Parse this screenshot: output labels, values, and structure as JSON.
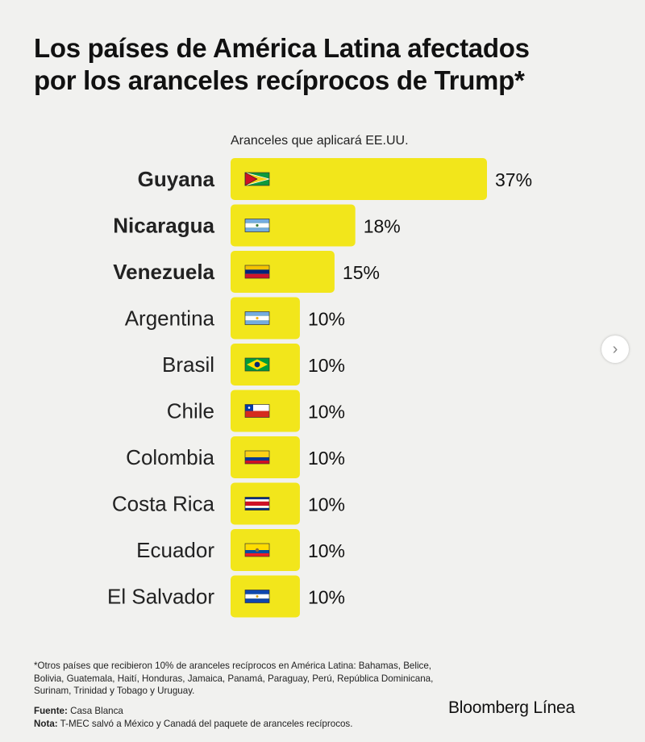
{
  "title_line1": "Los países de América Latina afectados",
  "title_line2": "por los aranceles recíprocos de Trump*",
  "footnote": {
    "text": "*Otros países que recibieron 10% de aranceles recíprocos en América Latina: Bahamas, Belice, Bolivia, Guatemala, Haití, Honduras, Jamaica, Panamá, Paraguay, Perú, República Dominicana, Surinam, Trinidad y Tobago y Uruguay.",
    "source_label": "Fuente:",
    "source_value": "Casa Blanca",
    "note_label": "Nota:",
    "note_value": "T-MEC salvó a México y Canadá del paquete de aranceles recíprocos."
  },
  "brand": "Bloomberg Línea",
  "colors": {
    "bar": "#f2e61b",
    "text": "#111111",
    "background": "#f1f1ef"
  },
  "chart_data": {
    "type": "bar",
    "orientation": "horizontal",
    "subtitle": "Aranceles que aplicará EE.UU.",
    "categories": [
      "Guyana",
      "Nicaragua",
      "Venezuela",
      "Argentina",
      "Brasil",
      "Chile",
      "Colombia",
      "Costa Rica",
      "Ecuador",
      "El Salvador"
    ],
    "values": [
      37,
      18,
      15,
      10,
      10,
      10,
      10,
      10,
      10,
      10
    ],
    "value_labels": [
      "37%",
      "18%",
      "15%",
      "10%",
      "10%",
      "10%",
      "10%",
      "10%",
      "10%",
      "10%"
    ],
    "bold_categories": [
      "Guyana",
      "Nicaragua",
      "Venezuela"
    ],
    "flags": [
      "guyana-flag-icon",
      "nicaragua-flag-icon",
      "venezuela-flag-icon",
      "argentina-flag-icon",
      "brasil-flag-icon",
      "chile-flag-icon",
      "colombia-flag-icon",
      "costa-rica-flag-icon",
      "ecuador-flag-icon",
      "el-salvador-flag-icon"
    ]
  }
}
